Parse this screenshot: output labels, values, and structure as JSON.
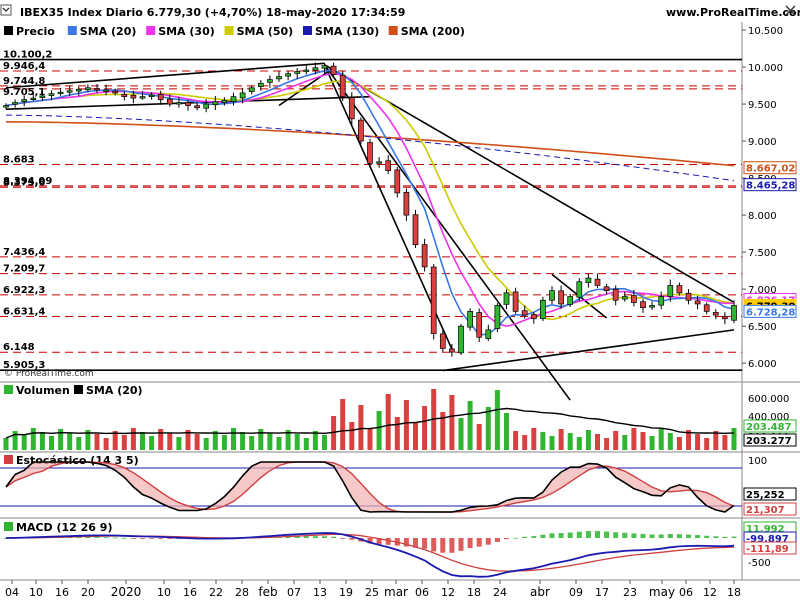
{
  "window": {
    "title": "IBEX35 Index Diario 6.779,30 (+4,70%) 18-may-2020 17:34:59",
    "site": "www.ProRealTime.com",
    "watermark": "© ProRealTime.com"
  },
  "legends": {
    "price": [
      {
        "label": "Precio",
        "color": "#000000"
      },
      {
        "label": "SMA (20)",
        "color": "#3a78e6"
      },
      {
        "label": "SMA (30)",
        "color": "#ee33ee"
      },
      {
        "label": "SMA (50)",
        "color": "#cccc00"
      },
      {
        "label": "SMA (130)",
        "color": "#1a1ab0"
      },
      {
        "label": "SMA (200)",
        "color": "#d0501a"
      }
    ],
    "volume": [
      {
        "label": "Volumen",
        "color": "#2fb52f"
      },
      {
        "label": "SMA (20)",
        "color": "#000000"
      }
    ],
    "stochastic": [
      {
        "label": "Estocástico (14 3 5)",
        "color": "#d04040"
      }
    ],
    "macd": [
      {
        "label": "MACD (12 26 9)",
        "color": "#2fb52f"
      }
    ]
  },
  "colors": {
    "up": "#2fb52f",
    "down": "#d94040",
    "level": "#c80000",
    "badge_price": "#ffcc00"
  },
  "chart_data": [
    {
      "type": "candlestick",
      "title": "IBEX35 Index Diario",
      "ylim": [
        5800,
        10500
      ],
      "y_ticks": [
        "10.500",
        "10.000",
        "9.500",
        "9.000",
        "8.500",
        "8.000",
        "7.500",
        "7.000",
        "6.500",
        "6.000"
      ],
      "x_ticks": [
        "04",
        "10",
        "16",
        "20",
        "2020",
        "10",
        "16",
        "22",
        "28",
        "feb",
        "07",
        "13",
        "19",
        "25",
        "mar",
        "06",
        "12",
        "18",
        "24",
        "abr",
        "09",
        "17",
        "23",
        "may",
        "06",
        "12",
        "18"
      ],
      "level_labels": [
        "10.100,2",
        "9.946,4",
        "9.744,8",
        "9.705,1",
        "8.394,09",
        "8.683",
        "8.375,6",
        "7.436,4",
        "7.209,7",
        "6.922,3",
        "6.631,4",
        "6.148",
        "5.905,3"
      ],
      "levels": [
        10100.2,
        9946.4,
        9744.8,
        9705.1,
        8394.09,
        8683,
        8375.6,
        7436.4,
        7209.7,
        6922.3,
        6631.4,
        6148,
        5905.3
      ],
      "closes": [
        9480,
        9520,
        9560,
        9580,
        9610,
        9640,
        9660,
        9680,
        9700,
        9720,
        9700,
        9690,
        9650,
        9600,
        9580,
        9600,
        9620,
        9560,
        9500,
        9520,
        9480,
        9450,
        9500,
        9530,
        9550,
        9600,
        9650,
        9720,
        9780,
        9830,
        9870,
        9910,
        9940,
        9960,
        9990,
        10020,
        9900,
        9600,
        9300,
        9000,
        8700,
        8720,
        8600,
        8300,
        8000,
        7600,
        7300,
        6400,
        6200,
        6150,
        6500,
        6700,
        6350,
        6450,
        6780,
        6950,
        6700,
        6650,
        6600,
        6850,
        6980,
        6800,
        6900,
        7100,
        7150,
        7050,
        6980,
        6850,
        6900,
        6820,
        6750,
        6780,
        6900,
        7050,
        6950,
        6850,
        6800,
        6700,
        6650,
        6600,
        6779.3
      ],
      "series_labels": [
        {
          "name": "SMA (20)",
          "value": "6.728,28"
        },
        {
          "name": "SMA (30)",
          "value": "6.826,17"
        },
        {
          "name": "SMA (50)",
          "value": "6.779,30"
        },
        {
          "name": "SMA (130)",
          "value": "8.465,28"
        },
        {
          "name": "SMA (200)",
          "value": "8.667,02"
        }
      ],
      "badges": [
        {
          "value": "8.667,02",
          "color": "#d0501a"
        },
        {
          "value": "8.465,28",
          "color": "#1a1ab0"
        },
        {
          "value": "6.826,17",
          "color": "#ee33ee"
        },
        {
          "value": "6.779,30",
          "color": "#ffcc00"
        },
        {
          "value": "6.728,28",
          "color": "#3a78e6"
        }
      ]
    },
    {
      "type": "bar",
      "title": "Volumen",
      "y_ticks": [
        "600.000",
        "400.000",
        "200.000"
      ],
      "badges": [
        {
          "value": "203.487",
          "color": "#2fb52f"
        },
        {
          "value": "203.277",
          "color": "#000000"
        }
      ]
    },
    {
      "type": "line",
      "title": "Estocástico (14 3 5)",
      "y_ticks": [
        "100",
        "0"
      ],
      "badges": [
        {
          "value": "25,252",
          "color": "#000000"
        },
        {
          "value": "21,307",
          "color": "#d04040"
        }
      ]
    },
    {
      "type": "line",
      "title": "MACD (12 26 9)",
      "y_ticks": [
        "500",
        "-500"
      ],
      "badges": [
        {
          "value": "11,992",
          "color": "#2fb52f"
        },
        {
          "value": "-99,897",
          "color": "#1a1ab0"
        },
        {
          "value": "-111,89",
          "color": "#d04040"
        }
      ]
    }
  ]
}
